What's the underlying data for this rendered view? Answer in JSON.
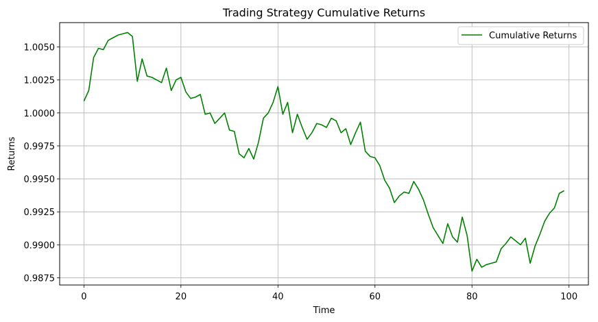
{
  "chart_data": {
    "type": "line",
    "title": "Trading Strategy Cumulative Returns",
    "xlabel": "Time",
    "ylabel": "Returns",
    "xlim": [
      -5,
      104
    ],
    "ylim": [
      0.98695,
      1.00685
    ],
    "xticks": [
      0,
      20,
      40,
      60,
      80,
      100
    ],
    "xtick_labels": [
      "0",
      "20",
      "40",
      "60",
      "80",
      "100"
    ],
    "yticks": [
      0.9875,
      0.99,
      0.9925,
      0.995,
      0.9975,
      1.0,
      1.0025,
      1.005
    ],
    "ytick_labels": [
      "0.9875",
      "0.9900",
      "0.9925",
      "0.9950",
      "0.9975",
      "1.0000",
      "1.0025",
      "1.0050"
    ],
    "grid": true,
    "legend_position": "top-right",
    "series": [
      {
        "name": "Cumulative Returns",
        "color": "#008000",
        "x": [
          0,
          1,
          2,
          3,
          4,
          5,
          6,
          7,
          8,
          9,
          10,
          11,
          12,
          13,
          14,
          15,
          16,
          17,
          18,
          19,
          20,
          21,
          22,
          23,
          24,
          25,
          26,
          27,
          28,
          29,
          30,
          31,
          32,
          33,
          34,
          35,
          36,
          37,
          38,
          39,
          40,
          41,
          42,
          43,
          44,
          45,
          46,
          47,
          48,
          49,
          50,
          51,
          52,
          53,
          54,
          55,
          56,
          57,
          58,
          59,
          60,
          61,
          62,
          63,
          64,
          65,
          66,
          67,
          68,
          69,
          70,
          71,
          72,
          73,
          74,
          75,
          76,
          77,
          78,
          79,
          80,
          81,
          82,
          83,
          84,
          85,
          86,
          87,
          88,
          89,
          90,
          91,
          92,
          93,
          94,
          95,
          96,
          97,
          98,
          99
        ],
        "values": [
          1.0009,
          1.0017,
          1.0042,
          1.0049,
          1.0048,
          1.0055,
          1.0057,
          1.0059,
          1.006,
          1.0061,
          1.0058,
          1.0024,
          1.0041,
          1.0028,
          1.0027,
          1.0025,
          1.0023,
          1.0034,
          1.0017,
          1.0025,
          1.0027,
          1.0016,
          1.0011,
          1.0012,
          1.0014,
          0.9999,
          1.0,
          0.9992,
          0.9996,
          1.0,
          0.9987,
          0.9986,
          0.9969,
          0.9966,
          0.9973,
          0.9965,
          0.9978,
          0.9996,
          1.0,
          1.0008,
          1.002,
          0.9999,
          1.0008,
          0.9985,
          0.9999,
          0.9989,
          0.998,
          0.9985,
          0.9992,
          0.9991,
          0.9989,
          0.9996,
          0.9994,
          0.9985,
          0.9988,
          0.9976,
          0.9985,
          0.9993,
          0.9971,
          0.9967,
          0.9966,
          0.996,
          0.9949,
          0.9943,
          0.9932,
          0.9937,
          0.994,
          0.9939,
          0.9948,
          0.9942,
          0.9934,
          0.9923,
          0.9913,
          0.9907,
          0.9901,
          0.9916,
          0.9906,
          0.9902,
          0.9921,
          0.9907,
          0.988,
          0.9889,
          0.9883,
          0.9885,
          0.9886,
          0.9887,
          0.9897,
          0.9901,
          0.9906,
          0.9903,
          0.99,
          0.9905,
          0.9886,
          0.9899,
          0.9908,
          0.9918,
          0.9924,
          0.9928,
          0.9939,
          0.9941
        ]
      }
    ]
  }
}
